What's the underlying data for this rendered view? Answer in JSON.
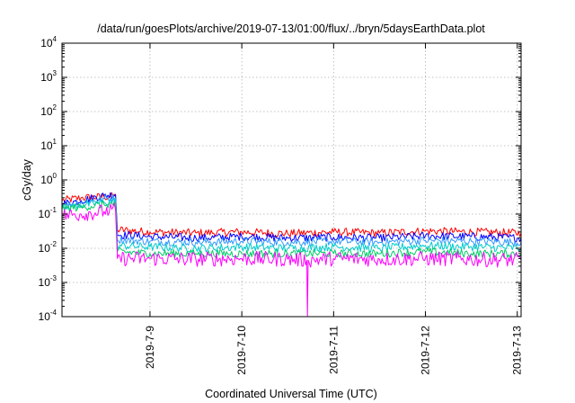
{
  "chart_data": {
    "type": "line",
    "title": "/data/run/goesPlots/archive/2019-07-13/01:00/flux/../bryn/5daysEarthData.plot",
    "xlabel": "Coordinated Universal Time (UTC)",
    "ylabel": "cGy/day",
    "y_scale": "log",
    "ylim": [
      0.0001,
      10000
    ],
    "xlim": [
      "2019-07-08 01:00",
      "2019-07-13 01:00"
    ],
    "x_ticks": [
      "2019-7-9",
      "2019-7-10",
      "2019-7-11",
      "2019-7-12",
      "2019-7-13"
    ],
    "y_ticks": [
      {
        "base": "10",
        "exp": "-4"
      },
      {
        "base": "10",
        "exp": "-3"
      },
      {
        "base": "10",
        "exp": "-2"
      },
      {
        "base": "10",
        "exp": "-1"
      },
      {
        "base": "10",
        "exp": "0"
      },
      {
        "base": "10",
        "exp": "1"
      },
      {
        "base": "10",
        "exp": "2"
      },
      {
        "base": "10",
        "exp": "3"
      },
      {
        "base": "10",
        "exp": "4"
      }
    ],
    "grid": true,
    "legend": "none",
    "series": [
      {
        "color": "#ff0000",
        "x": [
          "2019-07-08 01:00",
          "2019-07-08 06:00",
          "2019-07-08 12:00",
          "2019-07-08 15:00",
          "2019-07-08 15:30",
          "2019-07-09 00:00",
          "2019-07-09 12:00",
          "2019-07-10 00:00",
          "2019-07-10 12:00",
          "2019-07-11 00:00",
          "2019-07-11 12:00",
          "2019-07-12 00:00",
          "2019-07-12 12:00",
          "2019-07-13 01:00"
        ],
        "values": [
          0.25,
          0.3,
          0.32,
          0.33,
          0.035,
          0.03,
          0.028,
          0.03,
          0.027,
          0.03,
          0.028,
          0.032,
          0.03,
          0.028
        ]
      },
      {
        "color": "#0000ff",
        "x": [
          "2019-07-08 01:00",
          "2019-07-08 06:00",
          "2019-07-08 12:00",
          "2019-07-08 15:00",
          "2019-07-08 15:30",
          "2019-07-09 00:00",
          "2019-07-09 12:00",
          "2019-07-10 00:00",
          "2019-07-10 12:00",
          "2019-07-11 00:00",
          "2019-07-11 12:00",
          "2019-07-12 00:00",
          "2019-07-12 12:00",
          "2019-07-13 01:00"
        ],
        "values": [
          0.2,
          0.25,
          0.35,
          0.38,
          0.025,
          0.022,
          0.02,
          0.022,
          0.02,
          0.021,
          0.02,
          0.023,
          0.022,
          0.02
        ]
      },
      {
        "color": "#3399ff",
        "x": [
          "2019-07-08 01:00",
          "2019-07-08 06:00",
          "2019-07-08 12:00",
          "2019-07-08 15:00",
          "2019-07-08 15:30",
          "2019-07-09 00:00",
          "2019-07-09 12:00",
          "2019-07-10 00:00",
          "2019-07-10 12:00",
          "2019-07-11 00:00",
          "2019-07-11 12:00",
          "2019-07-12 00:00",
          "2019-07-12 12:00",
          "2019-07-13 01:00"
        ],
        "values": [
          0.17,
          0.22,
          0.28,
          0.3,
          0.018,
          0.016,
          0.015,
          0.016,
          0.015,
          0.016,
          0.015,
          0.017,
          0.016,
          0.015
        ]
      },
      {
        "color": "#00cccc",
        "x": [
          "2019-07-08 01:00",
          "2019-07-08 06:00",
          "2019-07-08 12:00",
          "2019-07-08 15:00",
          "2019-07-08 15:30",
          "2019-07-09 00:00",
          "2019-07-09 12:00",
          "2019-07-10 00:00",
          "2019-07-10 12:00",
          "2019-07-11 00:00",
          "2019-07-11 12:00",
          "2019-07-12 00:00",
          "2019-07-12 12:00",
          "2019-07-13 01:00"
        ],
        "values": [
          0.15,
          0.18,
          0.22,
          0.24,
          0.012,
          0.011,
          0.01,
          0.011,
          0.01,
          0.011,
          0.01,
          0.012,
          0.011,
          0.01
        ]
      },
      {
        "color": "#00cc66",
        "x": [
          "2019-07-08 01:00",
          "2019-07-08 06:00",
          "2019-07-08 12:00",
          "2019-07-08 15:00",
          "2019-07-08 15:30",
          "2019-07-09 00:00",
          "2019-07-09 12:00",
          "2019-07-10 00:00",
          "2019-07-10 12:00",
          "2019-07-11 00:00",
          "2019-07-11 12:00",
          "2019-07-12 00:00",
          "2019-07-12 12:00",
          "2019-07-13 01:00"
        ],
        "values": [
          0.14,
          0.16,
          0.19,
          0.2,
          0.008,
          0.007,
          0.007,
          0.007,
          0.007,
          0.007,
          0.007,
          0.008,
          0.007,
          0.007
        ]
      },
      {
        "color": "#ff00ff",
        "x": [
          "2019-07-08 01:00",
          "2019-07-08 06:00",
          "2019-07-08 12:00",
          "2019-07-08 15:00",
          "2019-07-08 15:30",
          "2019-07-09 00:00",
          "2019-07-09 12:00",
          "2019-07-10 00:00",
          "2019-07-10 12:00",
          "2019-07-10 17:00",
          "2019-07-10 17:10",
          "2019-07-10 17:20",
          "2019-07-11 00:00",
          "2019-07-11 12:00",
          "2019-07-12 00:00",
          "2019-07-12 12:00",
          "2019-07-13 01:00"
        ],
        "values": [
          0.09,
          0.1,
          0.12,
          0.13,
          0.005,
          0.005,
          0.0048,
          0.005,
          0.0048,
          0.0045,
          0.0001,
          0.0045,
          0.005,
          0.0048,
          0.005,
          0.0048,
          0.0045
        ]
      }
    ]
  }
}
